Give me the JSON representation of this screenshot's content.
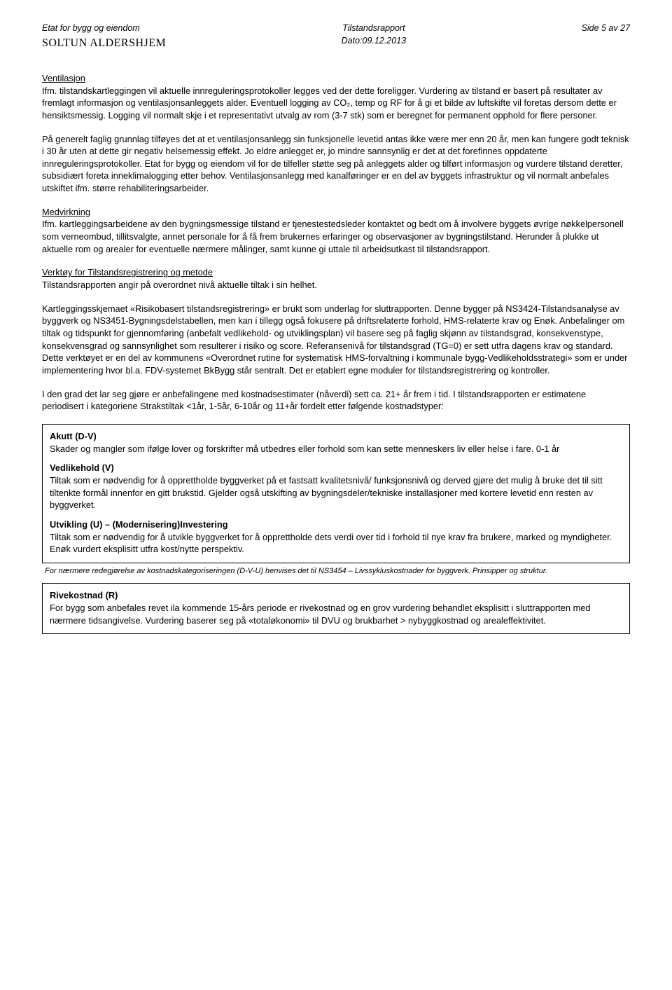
{
  "header": {
    "agency": "Etat for bygg og eiendom",
    "org": "SOLTUN ALDERSHJEM",
    "report_title": "Tilstandsrapport",
    "date_label": "Dato:09.12.2013",
    "page_label": "Side 5 av 27"
  },
  "sections": {
    "vent_heading": "Ventilasjon",
    "vent_p1": "Ifm. tilstandskartleggingen vil aktuelle innreguleringsprotokoller legges ved der dette foreligger. Vurdering av tilstand er basert på resultater av fremlagt informasjon og ventilasjonsanleggets alder. Eventuell logging av CO₂, temp og RF for å gi et bilde av luftskifte vil foretas dersom dette er hensiktsmessig. Logging vil normalt skje i et representativt utvalg av rom (3-7 stk) som er beregnet for permanent opphold for flere personer.",
    "vent_p2": "På generelt faglig grunnlag tilføyes det at et ventilasjonsanlegg sin funksjonelle levetid antas ikke være mer enn 20 år, men kan fungere godt teknisk i 30 år uten at dette gir negativ helsemessig effekt. Jo eldre anlegget er, jo mindre sannsynlig er det at det forefinnes oppdaterte innreguleringsprotokoller. Etat for bygg og eiendom vil for de tilfeller støtte seg på anleggets alder og tilført informasjon og vurdere tilstand deretter, subsidiært foreta inneklimalogging etter behov. Ventilasjonsanlegg med kanalføringer er en del av byggets infrastruktur og vil normalt anbefales utskiftet ifm. større rehabiliteringsarbeider.",
    "med_heading": "Medvirkning",
    "med_p1": "Ifm. kartleggingsarbeidene av den bygningsmessige tilstand er tjenestestedsleder kontaktet og bedt om å involvere byggets øvrige nøkkelpersonell som verneombud, tillitsvalgte, annet personale for å få frem brukernes erfaringer og observasjoner av bygningstilstand. Herunder å plukke ut aktuelle rom og arealer for eventuelle nærmere målinger, samt kunne gi uttale til arbeidsutkast til tilstandsrapport.",
    "tool_heading": "Verktøy for Tilstandsregistrering og metode",
    "tool_p1": "Tilstandsrapporten angir på overordnet nivå aktuelle tiltak i sin helhet.",
    "tool_p2": "Kartleggingsskjemaet «Risikobasert tilstandsregistrering» er brukt som underlag for sluttrapporten. Denne bygger på NS3424-Tilstandsanalyse av byggverk og NS3451-Bygningsdelstabellen, men kan i tillegg også fokusere på driftsrelaterte forhold, HMS-relaterte krav og Enøk. Anbefalinger om tiltak og tidspunkt for gjennomføring (anbefalt vedlikehold- og utviklingsplan) vil basere seg på faglig skjønn av tilstandsgrad, konsekvenstype, konsekvensgrad og sannsynlighet som resulterer i risiko og score. Referansenivå for tilstandsgrad (TG=0) er sett utfra dagens krav og standard. Dette verktøyet er en del av kommunens «Overordnet rutine for systematisk HMS-forvaltning i kommunale bygg-Vedlikeholdsstrategi» som er under implementering hvor bl.a. FDV-systemet BkBygg står sentralt. Det er etablert egne moduler for tilstandsregistrering og kontroller.",
    "tool_p3": "I den grad det lar seg gjøre er anbefalingene med kostnadsestimater (nåverdi) sett ca. 21+ år frem i tid. I tilstandsrapporten er estimatene periodisert i kategoriene Strakstiltak <1år, 1-5år, 6-10år og 11+år fordelt etter følgende kostnadstyper:"
  },
  "box1": {
    "akutt_heading": "Akutt (D-V)",
    "akutt_text": "Skader og mangler som ifølge lover og forskrifter må utbedres eller forhold som kan sette menneskers liv eller helse i fare. 0-1 år",
    "vedl_heading": "Vedlikehold (V)",
    "vedl_text": "Tiltak som er nødvendig for å opprettholde byggverket på et fastsatt kvalitetsnivå/ funksjonsnivå og derved gjøre det mulig å bruke det til sitt tiltenkte formål innenfor en gitt brukstid. Gjelder også utskifting av bygningsdeler/tekniske installasjoner med kortere levetid enn resten av byggverket.",
    "utv_heading": "Utvikling (U) – (Modernisering)Investering",
    "utv_text": "Tiltak som er nødvendig for å utvikle byggverket for å opprettholde dets verdi over tid i forhold til nye krav fra brukere, marked og myndigheter. Enøk vurdert eksplisitt utfra kost/nytte perspektiv."
  },
  "footnote": "For nærmere redegjørelse av kostnadskategoriseringen (D-V-U) henvises det til NS3454 – Livssykluskostnader for byggverk. Prinsipper og struktur.",
  "box2": {
    "rive_heading": "Rivekostnad (R)",
    "rive_text": "For bygg som anbefales revet ila kommende 15-års periode er rivekostnad og en grov vurdering behandlet eksplisitt i sluttrapporten med nærmere tidsangivelse. Vurdering baserer seg på «totaløkonomi» til DVU og brukbarhet > nybyggkostnad og arealeffektivitet."
  }
}
